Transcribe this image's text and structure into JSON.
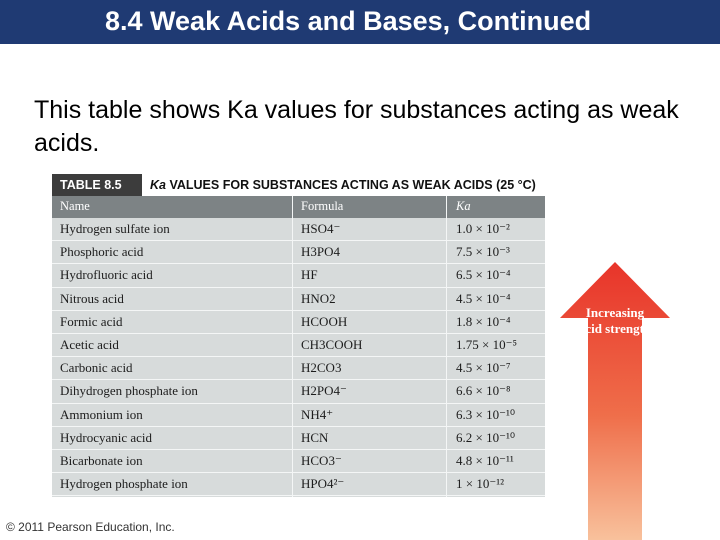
{
  "title": "8.4 Weak Acids and Bases, Continued",
  "intro": "This table shows Ka values for substances acting as weak acids.",
  "table": {
    "number": "TABLE 8.5",
    "caption_symbol": "Ka",
    "caption_rest": " VALUES FOR SUBSTANCES ACTING AS WEAK ACIDS (25 °C)",
    "headers": [
      "Name",
      "Formula",
      "Ka"
    ],
    "rows": [
      [
        "Hydrogen sulfate ion",
        "HSO4⁻",
        "1.0 × 10⁻²"
      ],
      [
        "Phosphoric acid",
        "H3PO4",
        "7.5 × 10⁻³"
      ],
      [
        "Hydrofluoric acid",
        "HF",
        "6.5 × 10⁻⁴"
      ],
      [
        "Nitrous acid",
        "HNO2",
        "4.5 × 10⁻⁴"
      ],
      [
        "Formic acid",
        "HCOOH",
        "1.8 × 10⁻⁴"
      ],
      [
        "Acetic acid",
        "CH3COOH",
        "1.75 × 10⁻⁵"
      ],
      [
        "Carbonic acid",
        "H2CO3",
        "4.5 × 10⁻⁷"
      ],
      [
        "Dihydrogen phosphate ion",
        "H2PO4⁻",
        "6.6 × 10⁻⁸"
      ],
      [
        "Ammonium ion",
        "NH4⁺",
        "6.3 × 10⁻¹⁰"
      ],
      [
        "Hydrocyanic acid",
        "HCN",
        "6.2 × 10⁻¹⁰"
      ],
      [
        "Bicarbonate ion",
        "HCO3⁻",
        "4.8 × 10⁻¹¹"
      ],
      [
        "Hydrogen phosphate ion",
        "HPO4²⁻",
        "1 × 10⁻¹²"
      ]
    ]
  },
  "arrow_label": "Increasing acid strength",
  "copyright": "© 2011 Pearson Education, Inc.",
  "colors": {
    "title_bar": "#1f3a73",
    "table_body": "#d7dbdb",
    "table_header": "#7d8385",
    "arrow_top": "#e8342a",
    "arrow_bottom": "#f6b48a"
  }
}
